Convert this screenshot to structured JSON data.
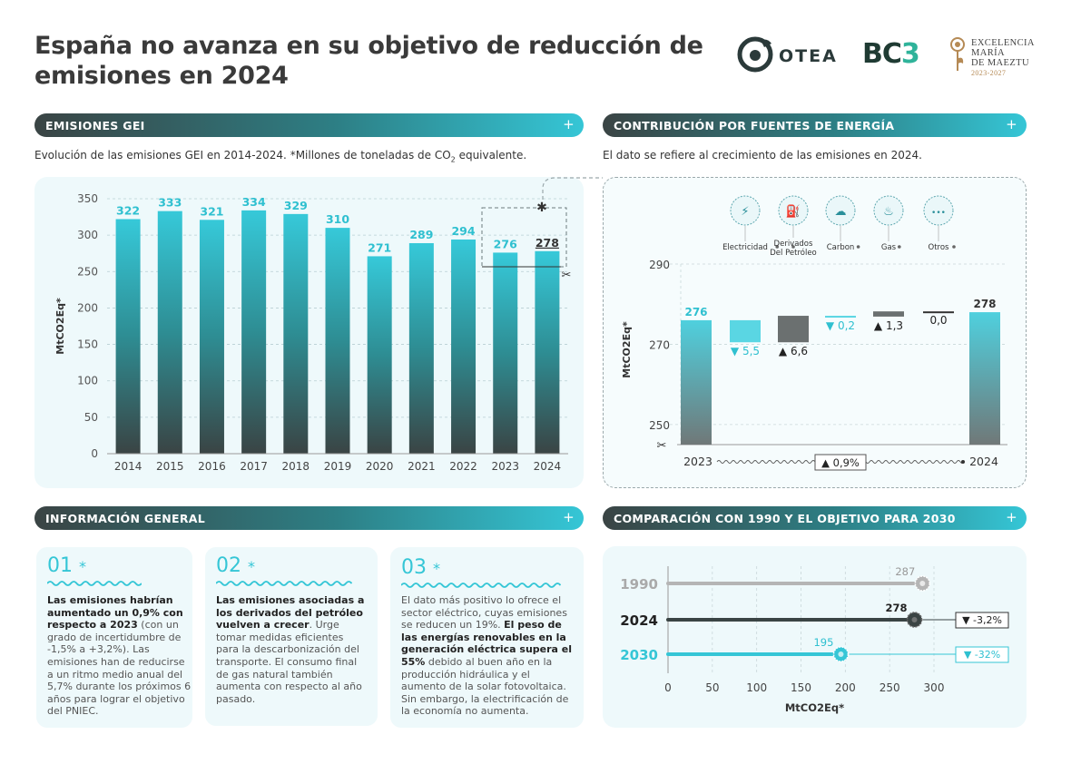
{
  "header": {
    "title_line1": "España no avanza en su objetivo de reducción de",
    "title_line2": "emisiones en 2024",
    "logo_otea": "OTEA",
    "logo_bc3": "BC",
    "logo_bc3_sup": "3",
    "logo_exc_l1": "EXCELENCIA",
    "logo_exc_l2": "MARÍA",
    "logo_exc_l3": "DE MAEZTU",
    "logo_exc_years": "2023-2027"
  },
  "sections": {
    "ghg": "EMISIONES GEI",
    "energy": "CONTRIBUCIÓN POR FUENTES DE ENERGÍA",
    "info": "INFORMACIÓN GENERAL",
    "comparison": "COMPARACIÓN CON 1990 Y EL OBJETIVO PARA 2030",
    "plus": "+"
  },
  "subtitles": {
    "ghg_pre": "Evolución de las emisiones GEI en 2014-2024. *Millones de toneladas de CO",
    "ghg_sub": "2",
    "ghg_post": " equivalente.",
    "energy": "El dato se refiere al crecimiento de las emisiones en 2024."
  },
  "colors": {
    "accent": "#35c6d6",
    "dark": "#3a4444",
    "gray": "#aaaaaa"
  },
  "chart_data": [
    {
      "type": "bar",
      "categories": [
        "2014",
        "2015",
        "2016",
        "2017",
        "2018",
        "2019",
        "2020",
        "2021",
        "2022",
        "2023",
        "2024"
      ],
      "values": [
        322,
        333,
        321,
        334,
        329,
        310,
        271,
        289,
        294,
        276,
        278
      ],
      "ylabel": "MtCO2Eq*",
      "ylim": [
        0,
        350
      ],
      "yticks": [
        0,
        50,
        100,
        150,
        200,
        250,
        300,
        350
      ],
      "grid": true,
      "highlight": [
        "2023",
        "2024"
      ]
    },
    {
      "type": "bar",
      "subtype": "waterfall",
      "ylabel": "MtCO2Eq*",
      "ylim": [
        245,
        290
      ],
      "yticks": [
        250,
        270,
        290
      ],
      "start": {
        "label": "2023",
        "value": 276,
        "value_label": "276"
      },
      "end": {
        "label": "2024",
        "value": 278,
        "value_label": "278"
      },
      "change_label": "0,9%",
      "steps": [
        {
          "name": "Electricidad",
          "icon": "lightning-icon",
          "delta": -5.5,
          "label": "5,5",
          "direction": "down"
        },
        {
          "name_l1": "Derivados",
          "name_l2": "Del Petróleo",
          "icon": "fuel-pump-icon",
          "delta": 6.6,
          "label": "6,6",
          "direction": "up"
        },
        {
          "name": "Carbon",
          "icon": "cloud-icon",
          "delta": -0.2,
          "label": "0,2",
          "direction": "down"
        },
        {
          "name": "Gas",
          "icon": "flame-icon",
          "delta": 1.3,
          "label": "1,3",
          "direction": "up"
        },
        {
          "name": "Otros",
          "icon": "dots-icon",
          "delta": 0.0,
          "label": "0,0",
          "direction": "none"
        }
      ]
    },
    {
      "type": "bar",
      "subtype": "horizontal-lollipop",
      "categories": [
        "1990",
        "2024",
        "2030"
      ],
      "values": [
        287,
        278,
        195
      ],
      "changes": [
        "",
        "-3,2%",
        "-32%"
      ],
      "xlabel": "MtCO2Eq*",
      "xlim": [
        0,
        300
      ],
      "xticks": [
        0,
        50,
        100,
        150,
        200,
        250,
        300
      ]
    }
  ],
  "info_cards": [
    {
      "num": "01",
      "star": "*",
      "bold1": "Las emisiones habrían aumentado un 0,9% con respecto a 2023",
      "rest1": " (con un grado de incertidumbre de -1,5% a +3,2%). Las emisiones han de reducirse a un ritmo medio anual del 5,7% durante los próximos 6 años para lograr el objetivo del PNIEC."
    },
    {
      "num": "02",
      "star": "*",
      "bold1": "Las emisiones asociadas a los derivados del petróleo vuelven a crecer",
      "rest1": ". Urge tomar medidas eficientes para la descarbonización del transporte. El consumo final de gas natural también aumenta con respecto al año pasado."
    },
    {
      "num": "03",
      "star": "*",
      "rest0": "El dato más positivo lo ofrece el sector eléctrico, cuyas emisiones se reducen un 19%. ",
      "bold1": "El peso de las energías renovables en la generación eléctrica supera el 55%",
      "rest1": " debido al buen año en la producción hidráulica y el aumento de la solar fotovoltaica. Sin embargo, la electrificación de la economía no aumenta."
    }
  ]
}
